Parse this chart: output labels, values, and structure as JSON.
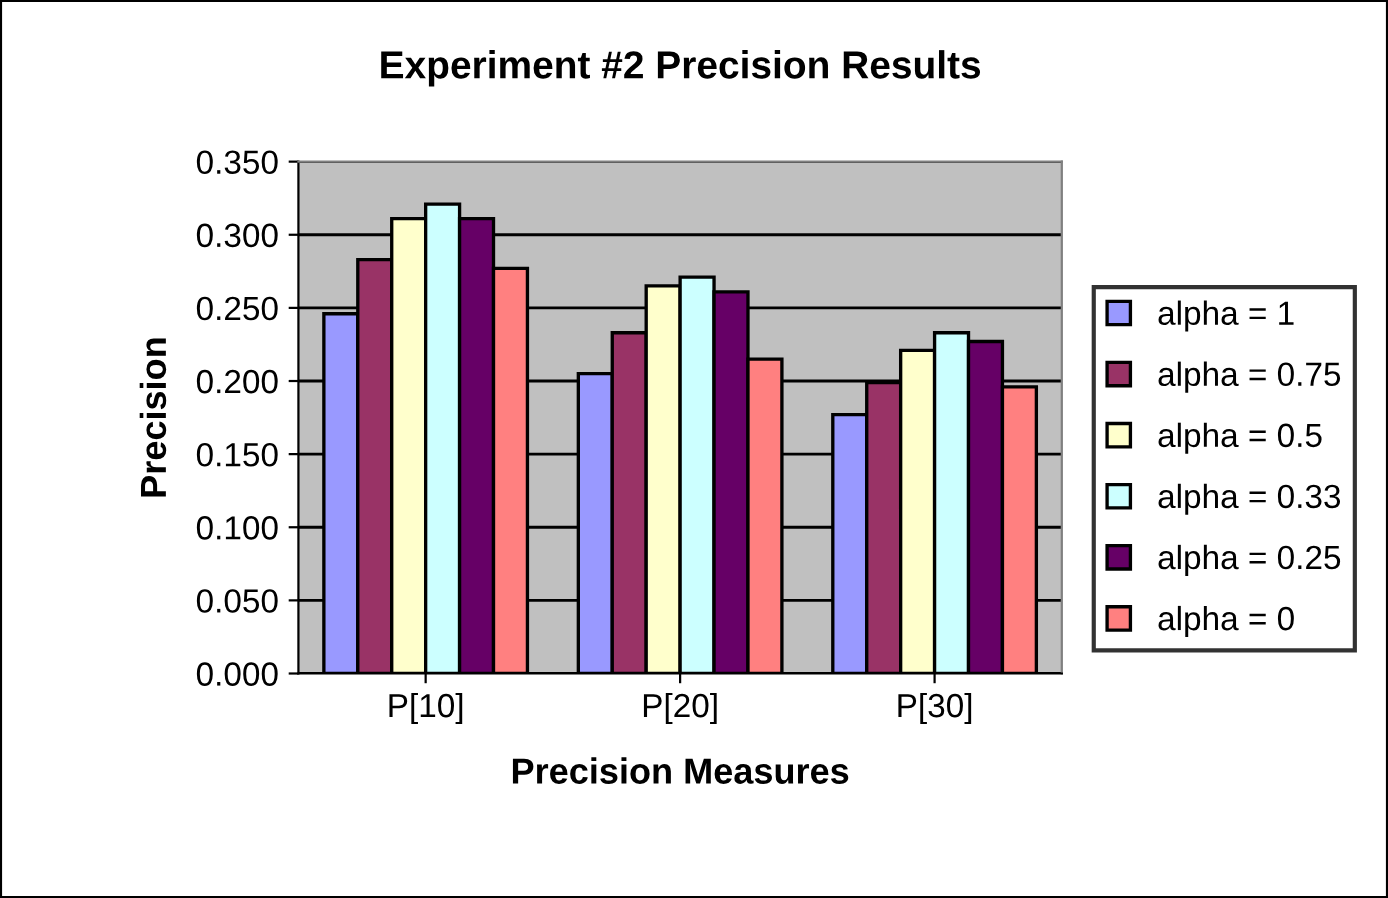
{
  "chart_data": {
    "type": "bar",
    "title": "Experiment #2 Precision Results",
    "xlabel": "Precision Measures",
    "ylabel": "Precision",
    "categories": [
      "P[10]",
      "P[20]",
      "P[30]"
    ],
    "series": [
      {
        "name": "alpha = 1",
        "color": "#9999ff",
        "values": [
          0.246,
          0.205,
          0.177
        ]
      },
      {
        "name": "alpha = 0.75",
        "color": "#993366",
        "values": [
          0.283,
          0.233,
          0.199
        ]
      },
      {
        "name": "alpha = 0.5",
        "color": "#ffffcc",
        "values": [
          0.311,
          0.265,
          0.221
        ]
      },
      {
        "name": "alpha = 0.33",
        "color": "#ccffff",
        "values": [
          0.321,
          0.271,
          0.233
        ]
      },
      {
        "name": "alpha = 0.25",
        "color": "#660066",
        "values": [
          0.311,
          0.261,
          0.227
        ]
      },
      {
        "name": "alpha = 0",
        "color": "#ff8080",
        "values": [
          0.277,
          0.215,
          0.196
        ]
      }
    ],
    "ylim": [
      0,
      0.35
    ],
    "yticks": [
      {
        "value": 0,
        "label": "0.000"
      },
      {
        "value": 0.05,
        "label": "0.050"
      },
      {
        "value": 0.1,
        "label": "0.100"
      },
      {
        "value": 0.15,
        "label": "0.150"
      },
      {
        "value": 0.2,
        "label": "0.200"
      },
      {
        "value": 0.25,
        "label": "0.250"
      },
      {
        "value": 0.3,
        "label": "0.300"
      },
      {
        "value": 0.35,
        "label": "0.350"
      }
    ],
    "grid": "y",
    "legend": "right"
  }
}
